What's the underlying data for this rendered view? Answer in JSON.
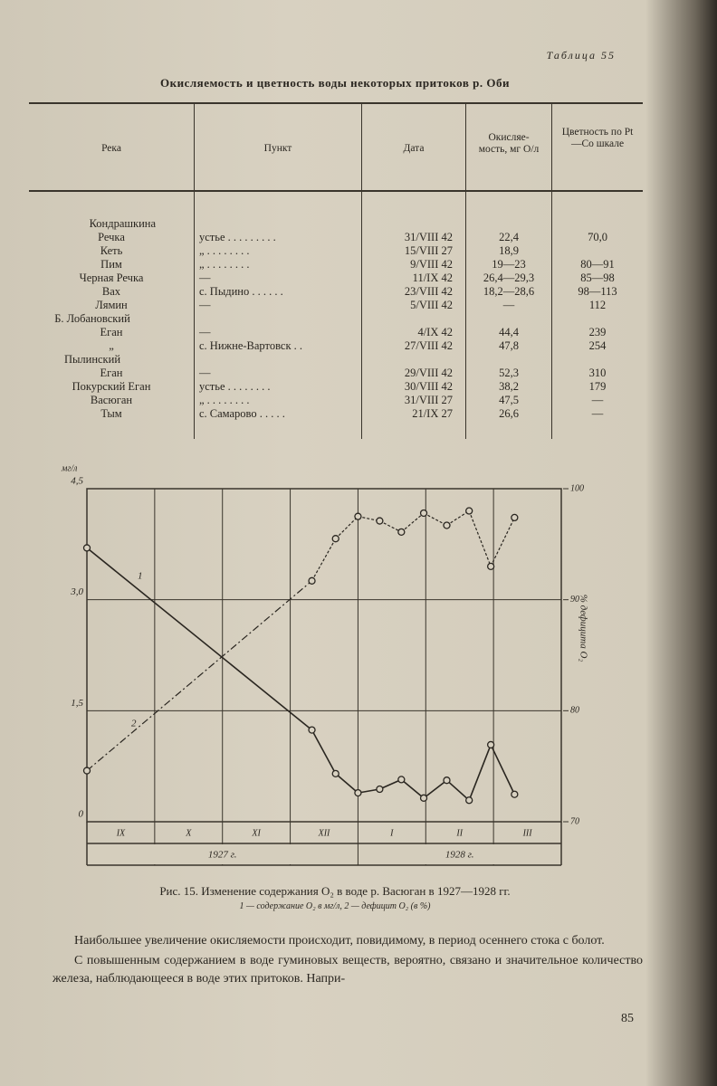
{
  "header": {
    "table_label": "Таблица 55",
    "title": "Окисляемость и цветность воды некоторых притоков р. Оби"
  },
  "table": {
    "columns": [
      "Река",
      "Пункт",
      "Дата",
      "Окисляе-мость, мг O/л",
      "Цветность по Pt—Co шкале"
    ],
    "rows": [
      [
        [
          "Кондрашкина",
          "Речка"
        ],
        "устье . . . . . . . . .",
        "31/VIII 42",
        "22,4",
        "70,0"
      ],
      [
        [
          "Кеть"
        ],
        "„ . . . . . . . .",
        "15/VIII 27",
        "18,9",
        null
      ],
      [
        [
          "Пим"
        ],
        "„ . . . . . . . .",
        "9/VIII 42",
        "19—23",
        "80—91"
      ],
      [
        [
          "Черная Речка"
        ],
        "—",
        "11/IX 42",
        "26,4—29,3",
        "85—98"
      ],
      [
        [
          "Вах"
        ],
        "с. Пыдино . . . . . .",
        "23/VIII 42",
        "18,2—28,6",
        "98—113"
      ],
      [
        [
          "Лямин"
        ],
        "—",
        "5/VIII 42",
        "—",
        "112"
      ],
      [
        [
          "Б. Лобановский",
          "Еган"
        ],
        "—",
        "4/IX 42",
        "44,4",
        "239"
      ],
      [
        [
          "„"
        ],
        "с. Нижне-Вартовск . .",
        "27/VIII 42",
        "47,8",
        "254"
      ],
      [
        [
          "Пылинский",
          "Еган"
        ],
        "—",
        "29/VIII 42",
        "52,3",
        "310"
      ],
      [
        [
          "Покурский Еган"
        ],
        "устье . . . . . . . .",
        "30/VIII 42",
        "38,2",
        "179"
      ],
      [
        [
          "Васюган"
        ],
        "„ . . . . . . . .",
        "31/VIII 27",
        "47,5",
        "—"
      ],
      [
        [
          "Тым"
        ],
        "с. Самарово . . . . .",
        "21/IX 27",
        "26,6",
        "—"
      ]
    ]
  },
  "chart_data": {
    "type": "line",
    "y_label": "мг/л",
    "y2_label": "% дефицита O₂",
    "categories": [
      "IX",
      "X",
      "XI",
      "XII",
      "I",
      "II",
      "III"
    ],
    "years": [
      "1927 г.",
      "1928 г."
    ],
    "xlim": [
      0,
      7
    ],
    "ylim": [
      0,
      4.5
    ],
    "yticks": [
      0,
      {
        "value": 1.5,
        "label": "1,5"
      },
      {
        "value": 3.0,
        "label": "3,0"
      },
      {
        "value": 4.5,
        "label": "4,5"
      }
    ],
    "y2lim": [
      70,
      100
    ],
    "y2ticks": [
      70,
      80,
      90,
      100
    ],
    "grid": true,
    "series": [
      {
        "name": "1",
        "color": "#2a2620",
        "x": [
          0,
          3.32,
          3.67,
          4.0,
          4.32,
          4.64,
          4.97,
          5.31,
          5.64,
          5.96,
          6.31
        ],
        "values": [
          3.7,
          1.24,
          0.65,
          0.39,
          0.44,
          0.57,
          0.32,
          0.56,
          0.29,
          1.04,
          0.37
        ]
      },
      {
        "name": "2",
        "color": "#2a2620",
        "axis": "y2",
        "x": [
          0,
          3.32,
          3.67,
          4.0,
          4.32,
          4.64,
          4.97,
          5.31,
          5.64,
          5.96,
          6.31
        ],
        "values": [
          74.6,
          91.7,
          95.5,
          97.5,
          97.1,
          96.1,
          97.8,
          96.7,
          98.0,
          93.0,
          97.4
        ]
      }
    ]
  },
  "caption": {
    "title": "Рис. 15. Изменение содержания O₂ в воде р. Васюган в 1927—1928 гг.",
    "legend": "1 — содержание O₂ в мг/л, 2 — дефицит O₂ (в %)"
  },
  "body": [
    "Наибольшее увеличение окисляемости происходит, повидимому, в период осеннего стока с болот.",
    "С повышенным содержанием в воде гуминовых веществ, вероятно, связано и значительное количество железа, наблюдающееся в воде этих притоков. Напри-"
  ],
  "page_number": "85"
}
